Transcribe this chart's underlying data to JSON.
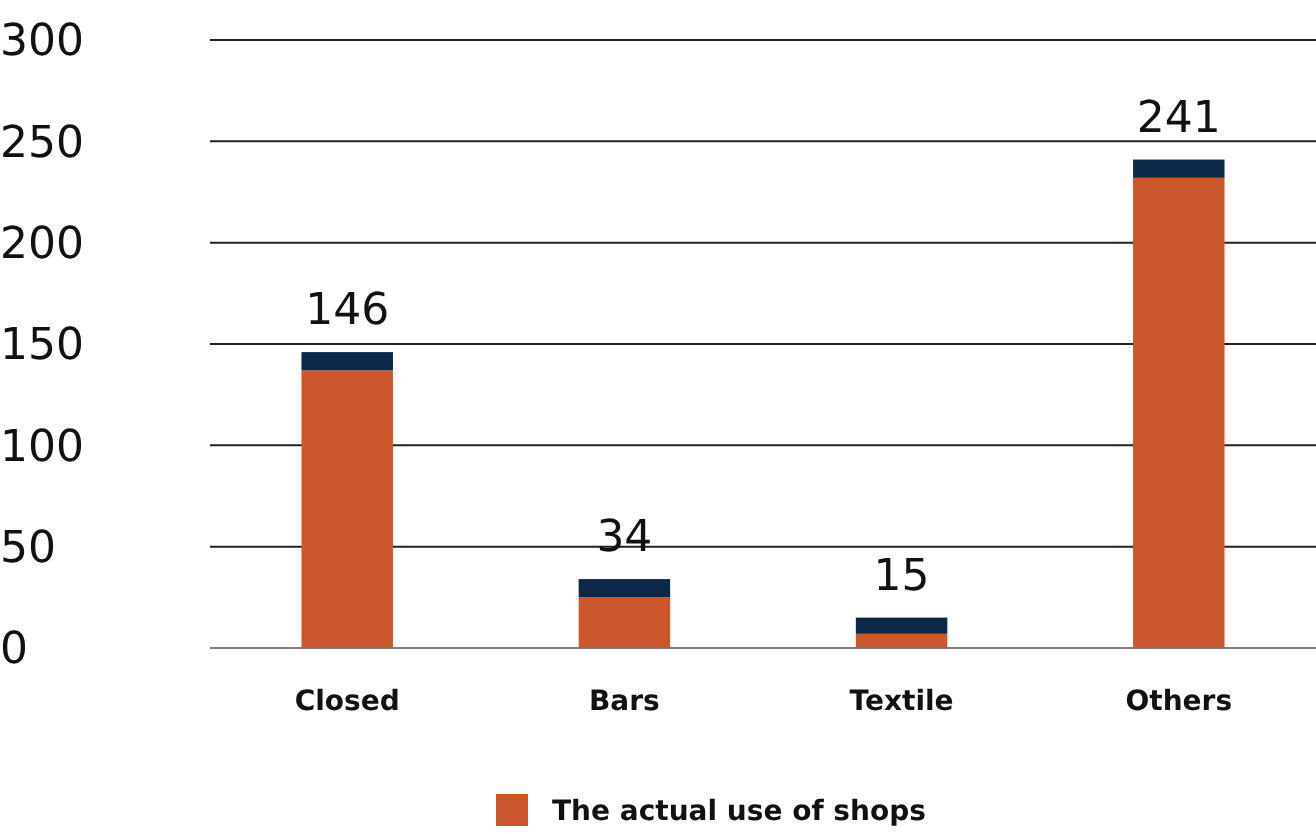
{
  "chart_data": {
    "type": "bar",
    "stacked": true,
    "categories": [
      "Closed",
      "Bars",
      "Textile",
      "Others"
    ],
    "series": [
      {
        "name": "The actual use of shops",
        "color": "#cb582d",
        "values": [
          137,
          25,
          7,
          232
        ]
      },
      {
        "color": "#0d2748",
        "values": [
          9,
          9,
          8,
          9
        ]
      }
    ],
    "totals": [
      "146",
      "34",
      "15",
      "241"
    ],
    "ylim": [
      0,
      300
    ],
    "yticks": [
      0,
      50,
      100,
      150,
      200,
      250,
      300
    ],
    "grid": "y",
    "legend": "bottom"
  }
}
